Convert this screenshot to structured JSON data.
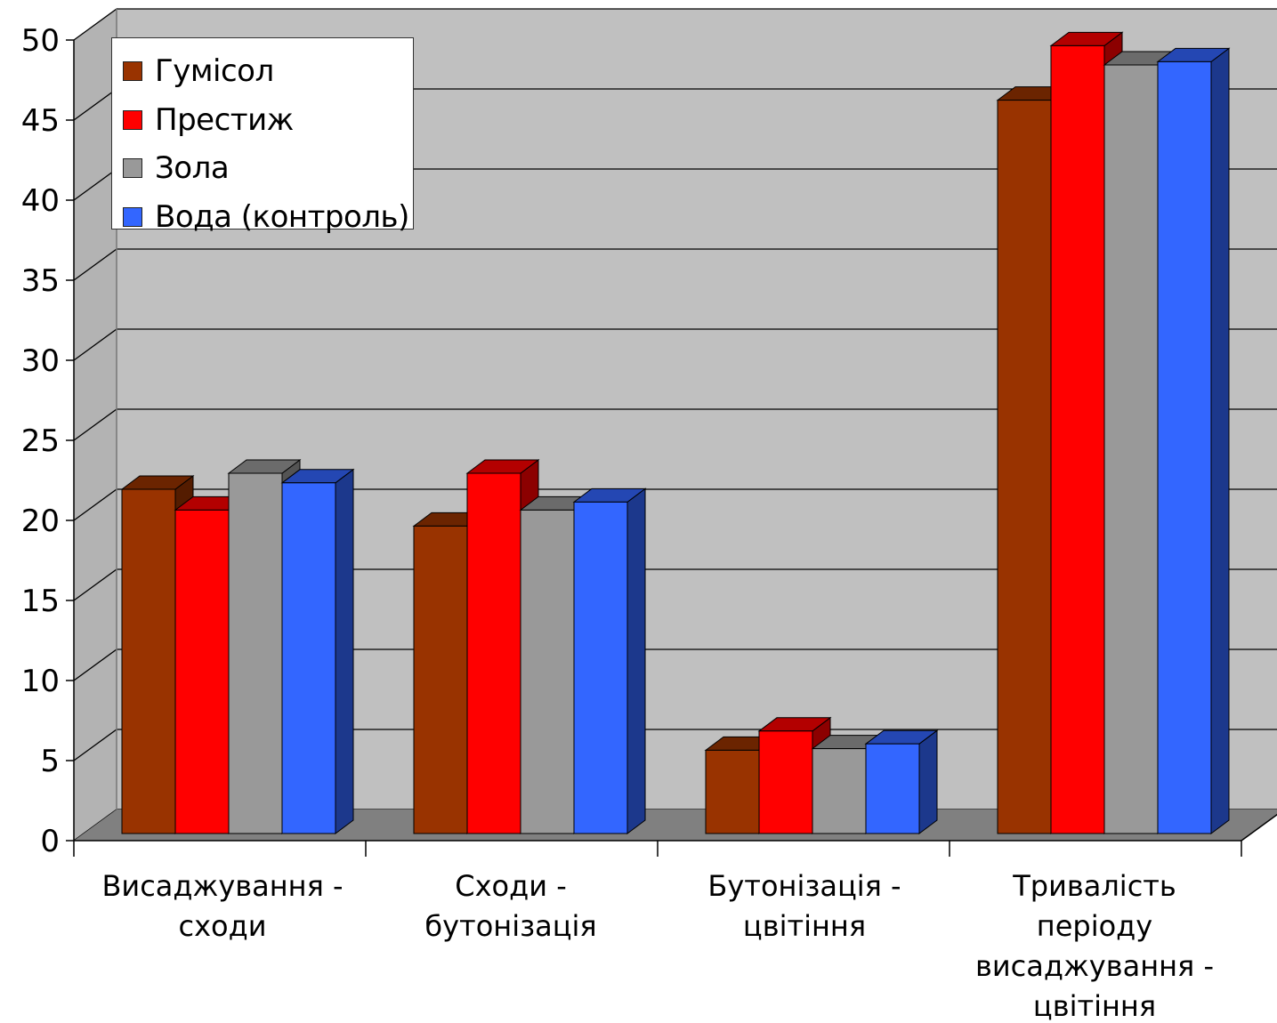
{
  "chart_data": {
    "type": "bar",
    "categories": [
      "Висаджування -\nсходи",
      "Сходи -\nбутонізація",
      "Бутонізація -\nцвітіння",
      "Тривалість\nперіоду\nвисаджування -\nцвітіння"
    ],
    "series": [
      {
        "name": "Гумісол",
        "color": "#993300",
        "values": [
          21.5,
          19.2,
          5.2,
          45.8
        ]
      },
      {
        "name": "Престиж",
        "color": "#ff0000",
        "values": [
          20.2,
          22.5,
          6.4,
          49.2
        ]
      },
      {
        "name": "Зола",
        "color": "#999999",
        "values": [
          22.5,
          20.2,
          5.3,
          48.0
        ]
      },
      {
        "name": "Вода (контроль)",
        "color": "#3366ff",
        "values": [
          21.9,
          20.7,
          5.6,
          48.2
        ]
      }
    ],
    "y_ticks": [
      "0",
      "5",
      "10",
      "15",
      "20",
      "25",
      "30",
      "35",
      "40",
      "45",
      "50"
    ],
    "ylim": [
      0,
      50
    ],
    "grid": true,
    "legend_position": "top-left",
    "title": "",
    "xlabel": "",
    "ylabel": ""
  }
}
